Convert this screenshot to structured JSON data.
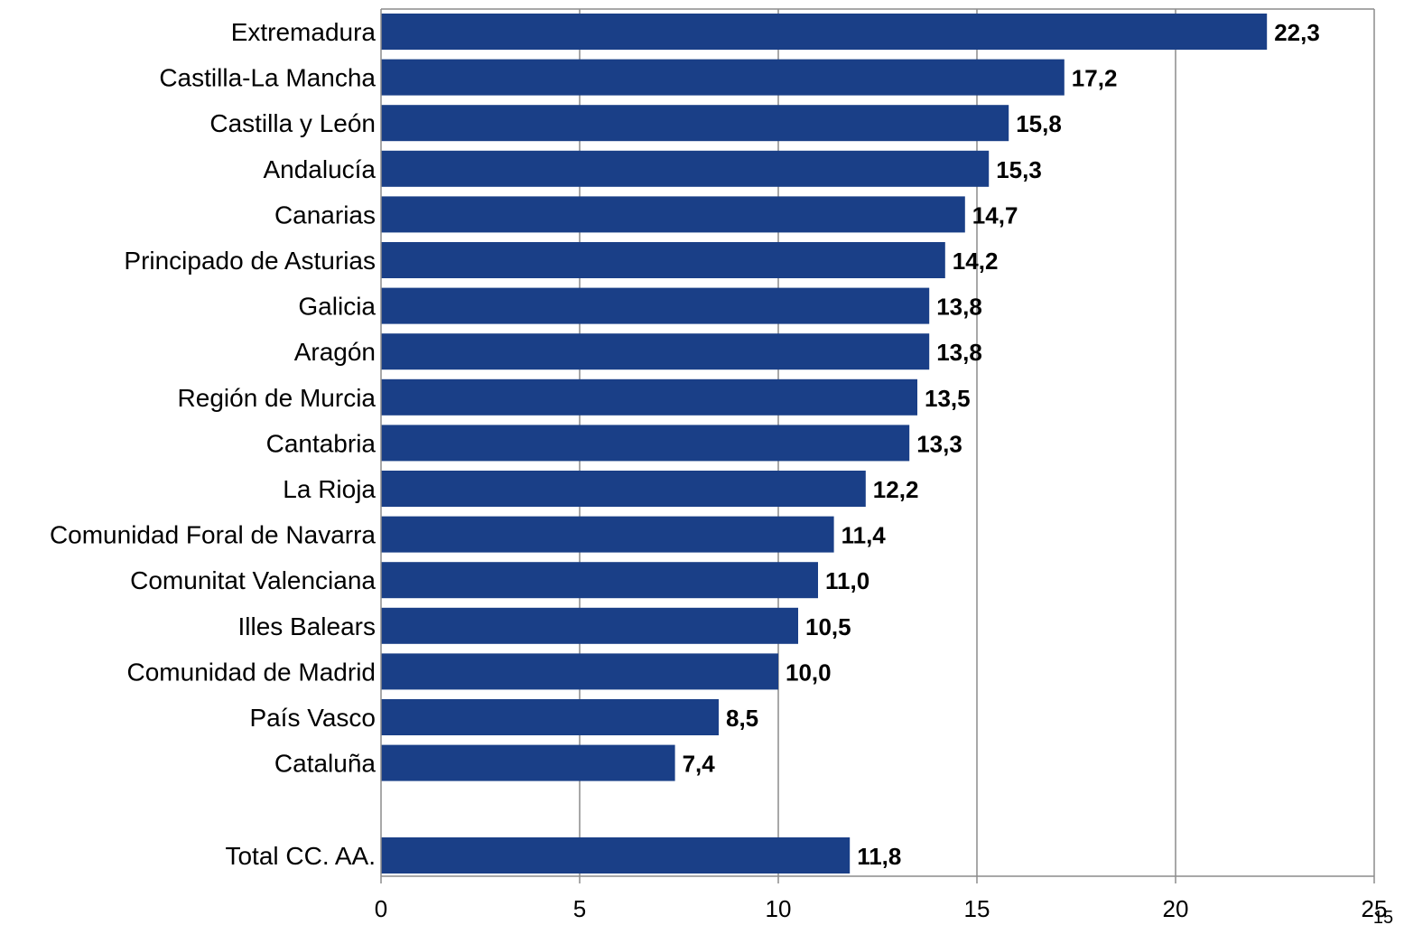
{
  "chart_data": {
    "type": "bar",
    "orientation": "horizontal",
    "categories": [
      "Extremadura",
      "Castilla-La Mancha",
      "Castilla y León",
      "Andalucía",
      "Canarias",
      "Principado de Asturias",
      "Galicia",
      "Aragón",
      "Región de Murcia",
      "Cantabria",
      "La Rioja",
      "Comunidad Foral de Navarra",
      "Comunitat Valenciana",
      "Illes Balears",
      "Comunidad de Madrid",
      "País Vasco",
      "Cataluña",
      "Total CC. AA."
    ],
    "values": [
      22.3,
      17.2,
      15.8,
      15.3,
      14.7,
      14.2,
      13.8,
      13.8,
      13.5,
      13.3,
      12.2,
      11.4,
      11.0,
      10.5,
      10.0,
      8.5,
      7.4,
      11.8
    ],
    "value_labels": [
      "22,3",
      "17,2",
      "15,8",
      "15,3",
      "14,7",
      "14,2",
      "13,8",
      "13,8",
      "13,5",
      "13,3",
      "12,2",
      "11,4",
      "11,0",
      "10,5",
      "10,0",
      "8,5",
      "7,4",
      "11,8"
    ],
    "xlim": [
      0,
      25
    ],
    "xticks": [
      0,
      5,
      10,
      15,
      20,
      25
    ],
    "xtick_labels": [
      "0",
      "5",
      "10",
      "15",
      "20",
      "25"
    ],
    "grid": "vertical",
    "bar_color": "#1a3f87",
    "title": "",
    "xlabel": "",
    "ylabel": ""
  },
  "page_number": "15"
}
